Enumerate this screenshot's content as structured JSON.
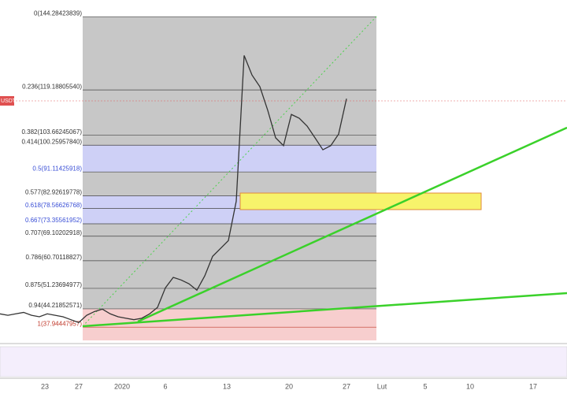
{
  "chart_data": {
    "type": "line",
    "ylim": [
      33.4,
      150
    ],
    "price_tag": "USDT",
    "series": [
      {
        "color": "#333333",
        "values": [
          42.5,
          42,
          42.5,
          43,
          42,
          41.5,
          42.5,
          42,
          41.5,
          40.5,
          39.5,
          42,
          43.3,
          44.1,
          42.5,
          41.5,
          41,
          40.5,
          41,
          42.5,
          44.7,
          51.4,
          55,
          54.1,
          52.8,
          50.6,
          55.5,
          62.2,
          64.9,
          67.6,
          81.1,
          131,
          124.3,
          120.3,
          112.2,
          102.8,
          100.1,
          110.8,
          109.5,
          106.8,
          102.8,
          98.7,
          100.1,
          104.1,
          116.2
        ]
      }
    ],
    "fib_levels": [
      {
        "value": 144.28423839,
        "label": "0(144.28423839)",
        "color": "#333333"
      },
      {
        "value": 119.1880554,
        "label": "0.236(119.18805540)",
        "color": "#333333"
      },
      {
        "value": 103.66245067,
        "label": "0.382(103.66245067)",
        "color": "#333333"
      },
      {
        "value": 100.2595784,
        "label": "0.414(100.25957840)",
        "color": "#333333"
      },
      {
        "value": 91.11425918,
        "label": "0.5(91.11425918)",
        "color": "#3a4fd6"
      },
      {
        "value": 82.92619778,
        "label": "0.577(82.92619778)",
        "color": "#333333"
      },
      {
        "value": 78.56626768,
        "label": "0.618(78.56626768)",
        "color": "#3a4fd6"
      },
      {
        "value": 73.35561952,
        "label": "0.667(73.35561952)",
        "color": "#3a4fd6"
      },
      {
        "value": 69.10202918,
        "label": "0.707(69.10202918)",
        "color": "#333333"
      },
      {
        "value": 60.70118827,
        "label": "0.786(60.70118827)",
        "color": "#333333"
      },
      {
        "value": 51.23694977,
        "label": "0.875(51.23694977)",
        "color": "#333333"
      },
      {
        "value": 44.21852571,
        "label": "0.94(44.21852571)",
        "color": "#333333"
      },
      {
        "value": 37.94447957,
        "label": "1(37.94447957)",
        "color": "#c0392b"
      }
    ],
    "x_labels": [
      "23",
      "27",
      "2020",
      "6",
      "13",
      "20",
      "27",
      "Lut",
      "5",
      "10",
      "17"
    ]
  }
}
